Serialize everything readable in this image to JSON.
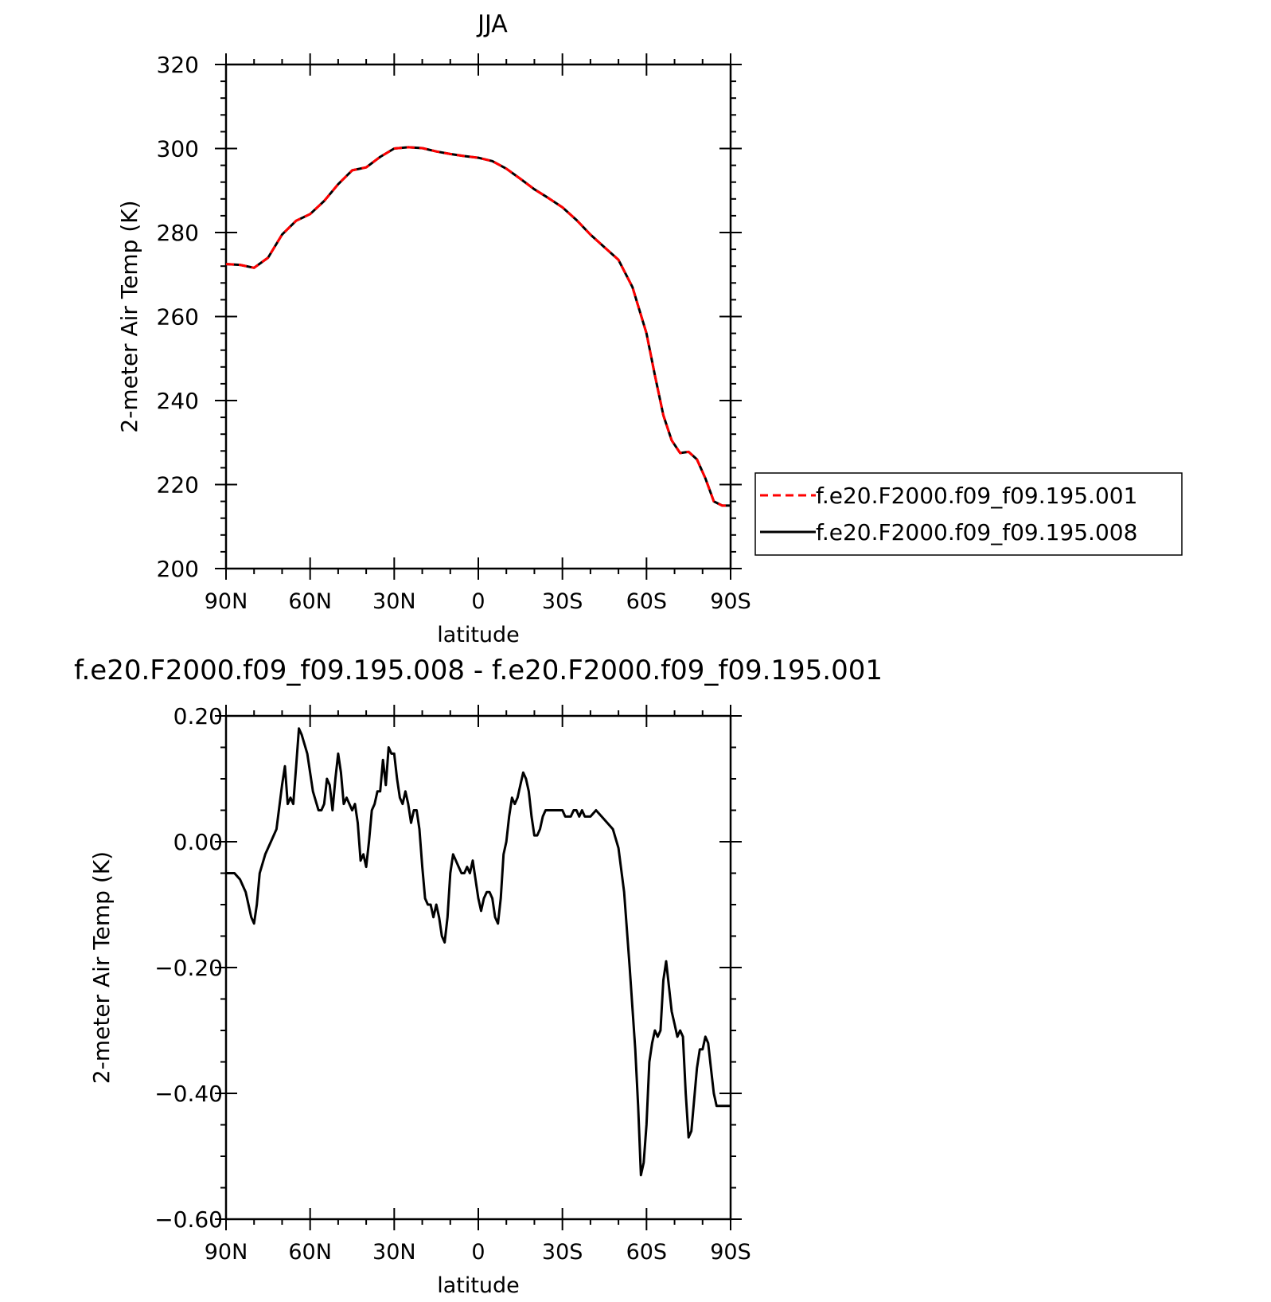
{
  "chart_data": [
    {
      "type": "line",
      "title": "JJA",
      "xlabel": "latitude",
      "ylabel": "2-meter Air Temp (K)",
      "xlim": [
        90,
        -90
      ],
      "ylim": [
        200,
        320
      ],
      "x_ticks": [
        90,
        60,
        30,
        0,
        -30,
        -60,
        -90
      ],
      "x_tick_labels": [
        "90N",
        "60N",
        "30N",
        "0",
        "30S",
        "60S",
        "90S"
      ],
      "y_ticks": [
        200,
        220,
        240,
        260,
        280,
        300,
        320
      ],
      "y_tick_labels": [
        "200",
        "220",
        "240",
        "260",
        "280",
        "300",
        "320"
      ],
      "legend_position": "right",
      "series": [
        {
          "name": "f.e20.F2000.f09_f09.195.001",
          "color": "#ff0000",
          "dash": true,
          "x": [
            90,
            85,
            80,
            75,
            70,
            65,
            60,
            55,
            50,
            45,
            40,
            35,
            30,
            25,
            20,
            15,
            10,
            5,
            0,
            -5,
            -10,
            -15,
            -20,
            -25,
            -30,
            -35,
            -40,
            -45,
            -50,
            -55,
            -60,
            -63,
            -66,
            -69,
            -72,
            -75,
            -78,
            -81,
            -84,
            -87,
            -90
          ],
          "values": [
            272.5,
            272.3,
            271.6,
            274.0,
            279.5,
            282.8,
            284.4,
            287.5,
            291.5,
            294.8,
            295.5,
            298.0,
            300.0,
            300.3,
            300.1,
            299.3,
            298.7,
            298.2,
            297.8,
            297.0,
            295.2,
            292.8,
            290.3,
            288.2,
            286.0,
            283.0,
            279.5,
            276.5,
            273.5,
            267.0,
            256.0,
            246.0,
            236.5,
            230.5,
            227.5,
            227.8,
            226.0,
            221.5,
            216.0,
            215.0,
            215.0
          ]
        },
        {
          "name": "f.e20.F2000.f09_f09.195.008",
          "color": "#000000",
          "dash": false,
          "x": [
            90,
            85,
            80,
            75,
            70,
            65,
            60,
            55,
            50,
            45,
            40,
            35,
            30,
            25,
            20,
            15,
            10,
            5,
            0,
            -5,
            -10,
            -15,
            -20,
            -25,
            -30,
            -35,
            -40,
            -45,
            -50,
            -55,
            -60,
            -63,
            -66,
            -69,
            -72,
            -75,
            -78,
            -81,
            -84,
            -87,
            -90
          ],
          "values": [
            272.5,
            272.3,
            271.6,
            274.0,
            279.5,
            282.8,
            284.4,
            287.5,
            291.5,
            294.8,
            295.5,
            298.0,
            300.0,
            300.3,
            300.1,
            299.3,
            298.7,
            298.2,
            297.8,
            297.0,
            295.2,
            292.8,
            290.3,
            288.2,
            286.0,
            283.0,
            279.5,
            276.5,
            273.5,
            267.0,
            256.0,
            246.0,
            236.5,
            230.5,
            227.5,
            227.8,
            226.0,
            221.5,
            216.0,
            215.0,
            215.0
          ]
        }
      ]
    },
    {
      "type": "line",
      "title": "f.e20.F2000.f09_f09.195.008 - f.e20.F2000.f09_f09.195.001",
      "xlabel": "latitude",
      "ylabel": "2-meter Air Temp (K)",
      "xlim": [
        90,
        -90
      ],
      "ylim": [
        -0.6,
        0.2
      ],
      "x_ticks": [
        90,
        60,
        30,
        0,
        -30,
        -60,
        -90
      ],
      "x_tick_labels": [
        "90N",
        "60N",
        "30N",
        "0",
        "30S",
        "60S",
        "90S"
      ],
      "y_ticks": [
        0.2,
        0.0,
        -0.2,
        -0.4,
        -0.6
      ],
      "y_tick_labels": [
        "0.20",
        "0.00",
        "−0.20",
        "−0.40",
        "−0.60"
      ],
      "series": [
        {
          "color": "#000000",
          "x": [
            90,
            87,
            85,
            83,
            81,
            80,
            79,
            78,
            76,
            74,
            72,
            70,
            69,
            68,
            67,
            66,
            65,
            64,
            63,
            61,
            59,
            57,
            56,
            55,
            54,
            53,
            52,
            51,
            50,
            49,
            48,
            47,
            46,
            45,
            44,
            43,
            42,
            41,
            40,
            39,
            38,
            37,
            36,
            35,
            34,
            33,
            32,
            31,
            30,
            29,
            28,
            27,
            26,
            25,
            24,
            23,
            22,
            21,
            20,
            19,
            18,
            17,
            16,
            15,
            14,
            13,
            12,
            11,
            10,
            9,
            8,
            7,
            6,
            5,
            4,
            3,
            2,
            1,
            0,
            -1,
            -2,
            -3,
            -4,
            -5,
            -6,
            -7,
            -8,
            -9,
            -10,
            -11,
            -12,
            -13,
            -14,
            -15,
            -16,
            -17,
            -18,
            -19,
            -20,
            -21,
            -22,
            -23,
            -24,
            -25,
            -26,
            -27,
            -28,
            -29,
            -30,
            -31,
            -32,
            -33,
            -34,
            -35,
            -36,
            -37,
            -38,
            -40,
            -42,
            -44,
            -46,
            -48,
            -50,
            -52,
            -54,
            -56,
            -57,
            -58,
            -59,
            -60,
            -61,
            -62,
            -63,
            -64,
            -65,
            -66,
            -67,
            -68,
            -69,
            -70,
            -71,
            -72,
            -73,
            -74,
            -75,
            -76,
            -77,
            -78,
            -79,
            -80,
            -81,
            -82,
            -83,
            -84,
            -85,
            -86,
            -87,
            -88,
            -89,
            -90
          ],
          "values": [
            -0.05,
            -0.05,
            -0.06,
            -0.08,
            -0.12,
            -0.13,
            -0.1,
            -0.05,
            -0.02,
            0.0,
            0.02,
            0.09,
            0.12,
            0.06,
            0.07,
            0.06,
            0.12,
            0.18,
            0.17,
            0.14,
            0.08,
            0.05,
            0.05,
            0.06,
            0.1,
            0.09,
            0.05,
            0.1,
            0.14,
            0.11,
            0.06,
            0.07,
            0.06,
            0.05,
            0.06,
            0.03,
            -0.03,
            -0.02,
            -0.04,
            0.0,
            0.05,
            0.06,
            0.08,
            0.08,
            0.13,
            0.09,
            0.15,
            0.14,
            0.14,
            0.1,
            0.07,
            0.06,
            0.08,
            0.06,
            0.03,
            0.05,
            0.05,
            0.02,
            -0.04,
            -0.09,
            -0.1,
            -0.1,
            -0.12,
            -0.1,
            -0.12,
            -0.15,
            -0.16,
            -0.12,
            -0.05,
            -0.02,
            -0.03,
            -0.04,
            -0.05,
            -0.05,
            -0.04,
            -0.05,
            -0.03,
            -0.06,
            -0.09,
            -0.11,
            -0.09,
            -0.08,
            -0.08,
            -0.09,
            -0.12,
            -0.13,
            -0.09,
            -0.02,
            0.0,
            0.04,
            0.07,
            0.06,
            0.07,
            0.09,
            0.11,
            0.1,
            0.08,
            0.04,
            0.01,
            0.01,
            0.02,
            0.04,
            0.05,
            0.05,
            0.05,
            0.05,
            0.05,
            0.05,
            0.05,
            0.04,
            0.04,
            0.04,
            0.05,
            0.05,
            0.04,
            0.05,
            0.04,
            0.04,
            0.05,
            0.04,
            0.03,
            0.02,
            -0.01,
            -0.08,
            -0.2,
            -0.33,
            -0.42,
            -0.53,
            -0.51,
            -0.45,
            -0.35,
            -0.32,
            -0.3,
            -0.31,
            -0.3,
            -0.22,
            -0.19,
            -0.23,
            -0.27,
            -0.29,
            -0.31,
            -0.3,
            -0.31,
            -0.4,
            -0.47,
            -0.46,
            -0.41,
            -0.36,
            -0.33,
            -0.33,
            -0.31,
            -0.32,
            -0.36,
            -0.4,
            -0.42,
            -0.42,
            -0.42,
            -0.42,
            -0.42,
            -0.42
          ]
        }
      ]
    }
  ]
}
